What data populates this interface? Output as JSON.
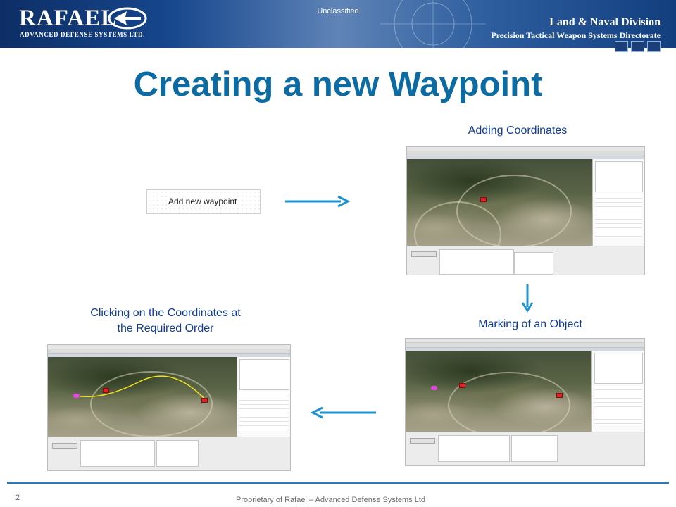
{
  "header": {
    "logo_name": "RAFAEL",
    "logo_subtitle": "ADVANCED DEFENSE SYSTEMS LTD.",
    "classification": "Unclassified",
    "division": "Land & Naval Division",
    "directorate": "Precision Tactical Weapon Systems Directorate"
  },
  "slide": {
    "title": "Creating a new Waypoint",
    "step1_button": "Add new waypoint",
    "caption_adding": "Adding Coordinates",
    "caption_marking": "Marking of an Object",
    "caption_clicking_line1": "Clicking on the Coordinates at",
    "caption_clicking_line2": "the Required Order"
  },
  "footer": {
    "page_number": "2",
    "text": "Proprietary of Rafael – Advanced Defense Systems Ltd"
  },
  "colors": {
    "title": "#0c6ba3",
    "caption": "#0f3c96",
    "arrow": "#1f93d1",
    "footer_line": "#2c78b8"
  }
}
